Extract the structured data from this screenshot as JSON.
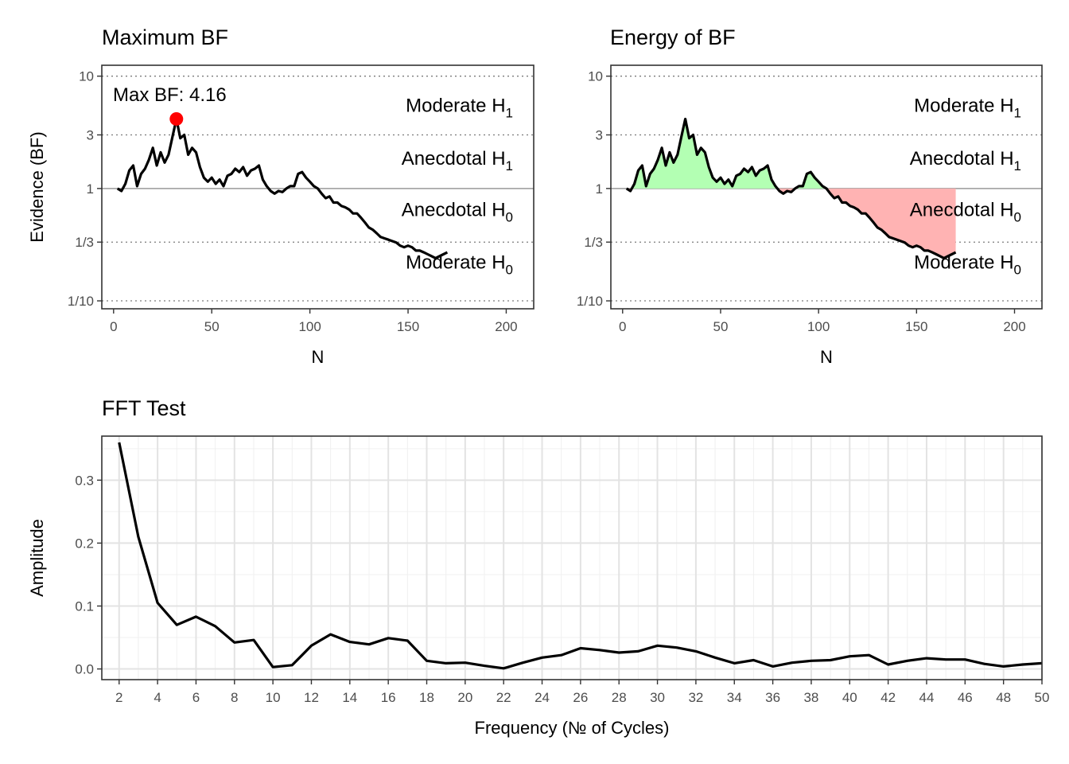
{
  "chart_data": [
    {
      "id": "max",
      "type": "line",
      "title": "Maximum BF",
      "xlabel": "N",
      "ylabel": "Evidence (BF)",
      "xlim": [
        -6,
        214
      ],
      "x_ticks": [
        0,
        50,
        100,
        150,
        200
      ],
      "y_scale": "log",
      "ylim": [
        0.085,
        12.5
      ],
      "y_ticks": [
        {
          "value": 10,
          "label": "10"
        },
        {
          "value": 3,
          "label": "3"
        },
        {
          "value": 1,
          "label": "1"
        },
        {
          "value": 0.3333,
          "label": "1/3"
        },
        {
          "value": 0.1,
          "label": "1/10"
        }
      ],
      "grid": "dotted at 10, 3, 1/3, 1/10; solid grey line at 1",
      "zones": [
        {
          "base": "Moderate H",
          "sub": "1",
          "y": 5.5
        },
        {
          "base": "Anecdotal H",
          "sub": "1",
          "y": 1.85
        },
        {
          "base": "Anecdotal H",
          "sub": "0",
          "y": 0.65
        },
        {
          "base": "Moderate H",
          "sub": "0",
          "y": 0.22
        }
      ],
      "annotation": {
        "label": "Max BF: 4.16",
        "x": 32,
        "y": 4.16,
        "color": "#ff0000"
      },
      "series": [
        {
          "x": [
            2,
            4,
            6,
            8,
            10,
            12,
            14,
            16,
            18,
            20,
            22,
            24,
            26,
            28,
            30,
            32,
            34,
            36,
            38,
            40,
            42,
            44,
            46,
            48,
            50,
            52,
            54,
            56,
            58,
            60,
            62,
            64,
            66,
            68,
            70,
            72,
            74,
            76,
            78,
            80,
            82,
            84,
            86,
            88,
            90,
            92,
            94,
            96,
            98,
            100,
            102,
            104,
            106,
            108,
            110,
            112,
            114,
            116,
            118,
            120,
            122,
            124,
            126,
            128,
            130,
            132,
            134,
            136,
            138,
            140,
            142,
            144,
            146,
            148,
            150,
            152,
            154,
            156,
            158,
            160,
            162,
            164,
            166,
            168,
            170
          ],
          "y": [
            1.0,
            0.95,
            1.1,
            1.45,
            1.6,
            1.05,
            1.35,
            1.5,
            1.8,
            2.3,
            1.6,
            2.1,
            1.7,
            2.0,
            2.9,
            4.16,
            2.8,
            3.0,
            2.0,
            2.3,
            2.1,
            1.55,
            1.25,
            1.15,
            1.25,
            1.1,
            1.2,
            1.05,
            1.3,
            1.35,
            1.5,
            1.4,
            1.55,
            1.3,
            1.45,
            1.5,
            1.6,
            1.2,
            1.05,
            0.95,
            0.9,
            0.95,
            0.93,
            1.0,
            1.05,
            1.05,
            1.35,
            1.4,
            1.25,
            1.15,
            1.05,
            1.0,
            0.9,
            0.82,
            0.85,
            0.75,
            0.75,
            0.7,
            0.68,
            0.65,
            0.6,
            0.6,
            0.55,
            0.5,
            0.45,
            0.43,
            0.4,
            0.37,
            0.36,
            0.35,
            0.34,
            0.33,
            0.31,
            0.3,
            0.31,
            0.3,
            0.28,
            0.28,
            0.27,
            0.26,
            0.25,
            0.24,
            0.25,
            0.26,
            0.27
          ]
        }
      ]
    },
    {
      "id": "energy",
      "type": "area",
      "title": "Energy of BF",
      "xlabel": "N",
      "ylabel": "",
      "xlim": [
        -6,
        214
      ],
      "x_ticks": [
        0,
        50,
        100,
        150,
        200
      ],
      "y_scale": "log",
      "ylim": [
        0.085,
        12.5
      ],
      "y_ticks": [
        {
          "value": 10,
          "label": "10"
        },
        {
          "value": 3,
          "label": "3"
        },
        {
          "value": 1,
          "label": "1"
        },
        {
          "value": 0.3333,
          "label": "1/3"
        },
        {
          "value": 0.1,
          "label": "1/10"
        }
      ],
      "grid": "dotted at 10, 3, 1/3, 1/10; solid grey line at 1",
      "zones": [
        {
          "base": "Moderate H",
          "sub": "1",
          "y": 5.5
        },
        {
          "base": "Anecdotal H",
          "sub": "1",
          "y": 1.85
        },
        {
          "base": "Anecdotal H",
          "sub": "0",
          "y": 0.65
        },
        {
          "base": "Moderate H",
          "sub": "0",
          "y": 0.22
        }
      ],
      "fill_above": "#b3ffb3",
      "fill_below": "#ffb3b3",
      "series": [
        {
          "x": [
            2,
            4,
            6,
            8,
            10,
            12,
            14,
            16,
            18,
            20,
            22,
            24,
            26,
            28,
            30,
            32,
            34,
            36,
            38,
            40,
            42,
            44,
            46,
            48,
            50,
            52,
            54,
            56,
            58,
            60,
            62,
            64,
            66,
            68,
            70,
            72,
            74,
            76,
            78,
            80,
            82,
            84,
            86,
            88,
            90,
            92,
            94,
            96,
            98,
            100,
            102,
            104,
            106,
            108,
            110,
            112,
            114,
            116,
            118,
            120,
            122,
            124,
            126,
            128,
            130,
            132,
            134,
            136,
            138,
            140,
            142,
            144,
            146,
            148,
            150,
            152,
            154,
            156,
            158,
            160,
            162,
            164,
            166,
            168,
            170
          ],
          "y": [
            1.0,
            0.95,
            1.1,
            1.45,
            1.6,
            1.05,
            1.35,
            1.5,
            1.8,
            2.3,
            1.6,
            2.1,
            1.7,
            2.0,
            2.9,
            4.16,
            2.8,
            3.0,
            2.0,
            2.3,
            2.1,
            1.55,
            1.25,
            1.15,
            1.25,
            1.1,
            1.2,
            1.05,
            1.3,
            1.35,
            1.5,
            1.4,
            1.55,
            1.3,
            1.45,
            1.5,
            1.6,
            1.2,
            1.05,
            0.95,
            0.9,
            0.95,
            0.93,
            1.0,
            1.05,
            1.05,
            1.35,
            1.4,
            1.25,
            1.15,
            1.05,
            1.0,
            0.9,
            0.82,
            0.85,
            0.75,
            0.75,
            0.7,
            0.68,
            0.65,
            0.6,
            0.6,
            0.55,
            0.5,
            0.45,
            0.43,
            0.4,
            0.37,
            0.36,
            0.35,
            0.34,
            0.33,
            0.31,
            0.3,
            0.31,
            0.3,
            0.28,
            0.28,
            0.27,
            0.26,
            0.25,
            0.24,
            0.25,
            0.26,
            0.27
          ]
        }
      ]
    },
    {
      "id": "fft",
      "type": "line",
      "title": "FFT Test",
      "xlabel": "Frequency (№ of Cycles)",
      "ylabel": "Amplitude",
      "xlim": [
        1.1,
        50
      ],
      "x_ticks": [
        2,
        4,
        6,
        8,
        10,
        12,
        14,
        16,
        18,
        20,
        22,
        24,
        26,
        28,
        30,
        32,
        34,
        36,
        38,
        40,
        42,
        44,
        46,
        48,
        50
      ],
      "ylim": [
        -0.017,
        0.37
      ],
      "y_ticks": [
        {
          "value": 0.0,
          "label": "0.0"
        },
        {
          "value": 0.1,
          "label": "0.1"
        },
        {
          "value": 0.2,
          "label": "0.2"
        },
        {
          "value": 0.3,
          "label": "0.3"
        }
      ],
      "grid": "major and minor grey grid",
      "series": [
        {
          "x": [
            2,
            3,
            4,
            5,
            6,
            7,
            8,
            9,
            10,
            11,
            12,
            13,
            14,
            15,
            16,
            17,
            18,
            19,
            20,
            21,
            22,
            23,
            24,
            25,
            26,
            27,
            28,
            29,
            30,
            31,
            32,
            33,
            34,
            35,
            36,
            37,
            38,
            39,
            40,
            41,
            42,
            43,
            44,
            45,
            46,
            47,
            48,
            49,
            50
          ],
          "y": [
            0.36,
            0.21,
            0.105,
            0.07,
            0.083,
            0.068,
            0.042,
            0.046,
            0.003,
            0.006,
            0.037,
            0.055,
            0.043,
            0.039,
            0.049,
            0.045,
            0.013,
            0.009,
            0.01,
            0.005,
            0.001,
            0.01,
            0.018,
            0.022,
            0.033,
            0.03,
            0.026,
            0.028,
            0.037,
            0.034,
            0.028,
            0.018,
            0.009,
            0.014,
            0.004,
            0.01,
            0.013,
            0.014,
            0.02,
            0.022,
            0.007,
            0.013,
            0.017,
            0.015,
            0.015,
            0.008,
            0.004,
            0.007,
            0.009
          ]
        }
      ]
    }
  ]
}
